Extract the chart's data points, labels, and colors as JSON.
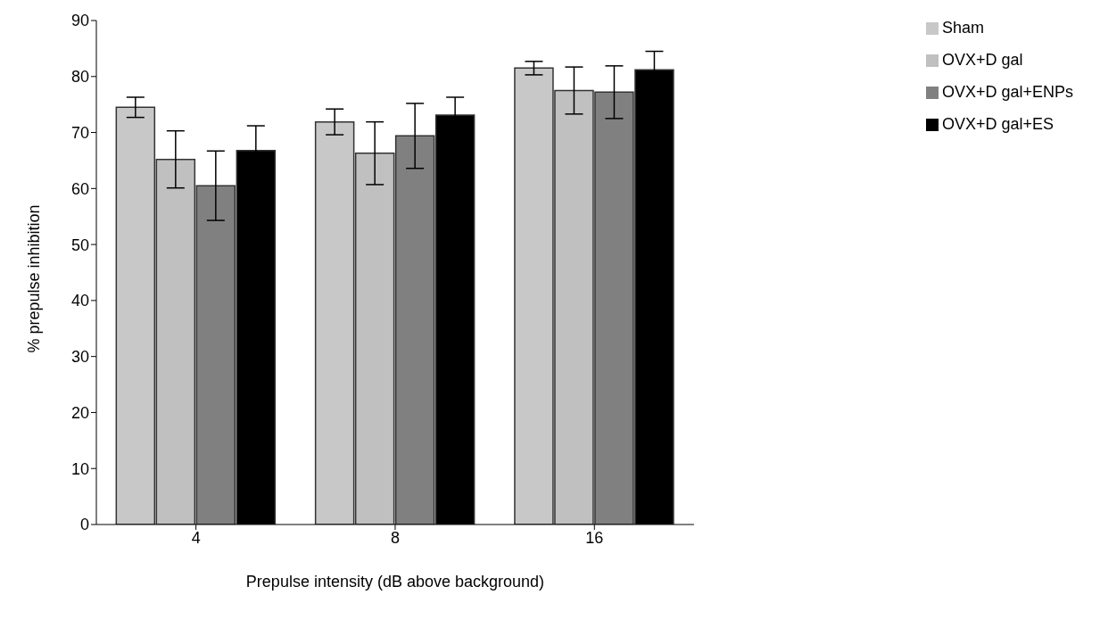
{
  "chart_data": {
    "type": "bar",
    "xlabel": "Prepulse intensity (dB above background)",
    "ylabel": "% prepulse inhibition",
    "categories": [
      "4",
      "8",
      "16"
    ],
    "series": [
      {
        "name": "Sham",
        "color": "#c8c8c8",
        "values": [
          74.5,
          71.9,
          81.5
        ],
        "errors": [
          1.8,
          2.3,
          1.2
        ]
      },
      {
        "name": "OVX+D gal",
        "color": "#c0c0c0",
        "values": [
          65.2,
          66.3,
          77.5
        ],
        "errors": [
          5.1,
          5.6,
          4.2
        ]
      },
      {
        "name": "OVX+D gal+ENPs",
        "color": "#808080",
        "values": [
          60.5,
          69.4,
          77.2
        ],
        "errors": [
          6.2,
          5.8,
          4.7
        ]
      },
      {
        "name": "OVX+D gal+ES",
        "color": "#000000",
        "values": [
          66.8,
          73.1,
          81.2
        ],
        "errors": [
          4.4,
          3.2,
          3.3
        ]
      }
    ],
    "ylim": [
      0,
      90
    ],
    "yticks": [
      0,
      10,
      20,
      30,
      40,
      50,
      60,
      70,
      80,
      90
    ],
    "grid": false,
    "legend": "top right"
  }
}
